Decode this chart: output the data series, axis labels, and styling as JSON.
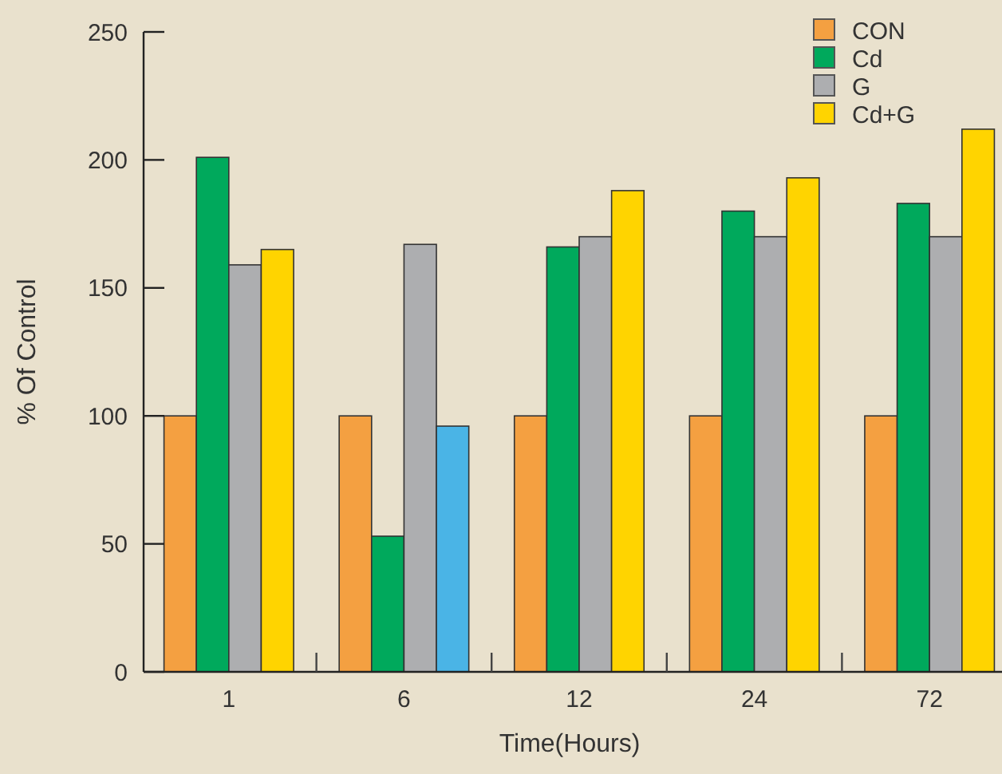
{
  "chart_data": {
    "type": "bar",
    "xlabel": "Time(Hours)",
    "ylabel": "% Of Control",
    "categories": [
      "1",
      "6",
      "12",
      "24",
      "72"
    ],
    "series": [
      {
        "name": "CON",
        "color": "#f4a041",
        "values": [
          100,
          100,
          100,
          100,
          100
        ]
      },
      {
        "name": "Cd",
        "color": "#00a95c",
        "values": [
          201,
          53,
          166,
          180,
          183
        ]
      },
      {
        "name": "G",
        "color": "#adaeb0",
        "values": [
          159,
          167,
          170,
          170,
          170
        ]
      },
      {
        "name": "Cd+G",
        "color": "#ffd400",
        "colors": [
          "#ffd400",
          "#4ab4e6",
          "#ffd400",
          "#ffd400",
          "#ffd400"
        ],
        "values": [
          165,
          96,
          188,
          193,
          212
        ]
      }
    ],
    "ylim": [
      0,
      250
    ],
    "yticks": [
      0,
      50,
      100,
      150,
      200,
      250
    ],
    "grid": false,
    "legend": "top right"
  }
}
